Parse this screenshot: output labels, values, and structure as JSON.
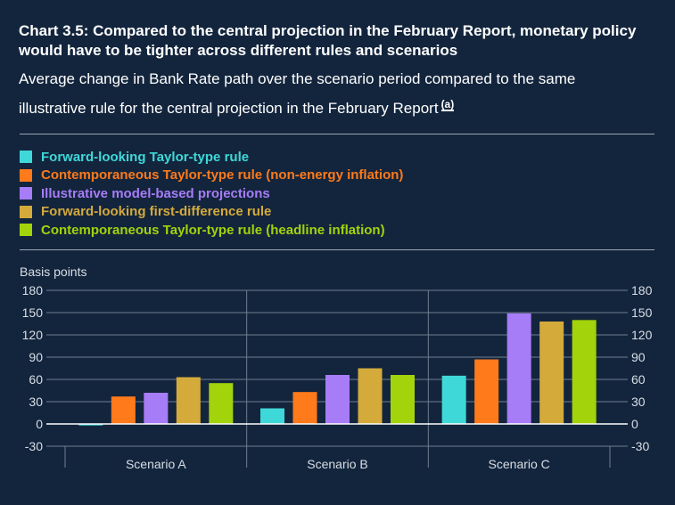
{
  "header": {
    "title": "Chart 3.5: Compared to the central projection in the February Report, monetary policy would have to be tighter across different rules and scenarios",
    "subtitle": "Average change in Bank Rate path over the scenario period compared to the same illustrative rule for the central projection in the February Report",
    "footnote_marker": "(a)"
  },
  "colors": {
    "background": "#13253d",
    "grid": "#6f7d8f",
    "zero_line": "#ffffff"
  },
  "chart_data": {
    "type": "bar",
    "ylabel": "Basis points",
    "ylim": [
      -30,
      180
    ],
    "yticks": [
      "180",
      "150",
      "120",
      "90",
      "60",
      "30",
      "0",
      "-30"
    ],
    "grid": true,
    "legend_position": "top-left",
    "categories": [
      "Scenario A",
      "Scenario B",
      "Scenario C"
    ],
    "series": [
      {
        "name": "Forward-looking Taylor-type rule",
        "color": "#3fd8d8",
        "values": [
          -2,
          21,
          65
        ]
      },
      {
        "name": "Contemporaneous Taylor-type rule (non-energy inflation)",
        "color": "#ff7a1a",
        "values": [
          37,
          43,
          87
        ]
      },
      {
        "name": "Illustrative model-based projections",
        "color": "#a77cf7",
        "values": [
          42,
          66,
          149
        ]
      },
      {
        "name": "Forward-looking first-difference rule",
        "color": "#d4aa3b",
        "values": [
          63,
          75,
          138
        ]
      },
      {
        "name": "Contemporaneous Taylor-type rule (headline inflation)",
        "color": "#a2d30b",
        "values": [
          55,
          66,
          140
        ]
      }
    ]
  }
}
